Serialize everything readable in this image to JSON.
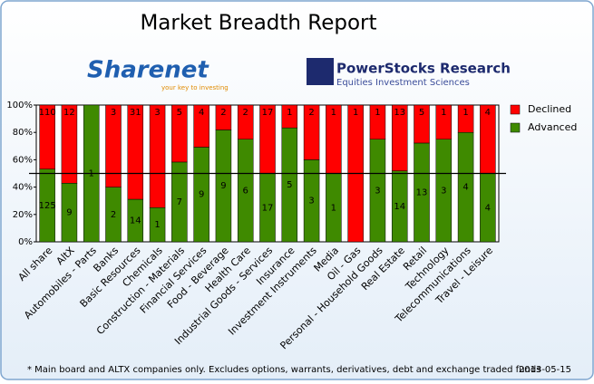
{
  "chart_data": {
    "type": "bar",
    "stacking": "percent",
    "title": "Market Breadth Report",
    "logos": {
      "left": {
        "name": "Sharenet",
        "tagline": "your key to investing"
      },
      "right": {
        "name": "PowerStocks Research",
        "tagline": "Equities Investment Sciences"
      }
    },
    "categories": [
      "All share",
      "AltX",
      "Automobiles - Parts",
      "Banks",
      "Basic Resources",
      "Chemicals",
      "Construction - Materials",
      "Financial Services",
      "Food - Beverage",
      "Health Care",
      "Industrial Goods - Services",
      "Insurance",
      "Investment Instruments",
      "Media",
      "Oil - Gas",
      "Personal - Household Goods",
      "Real Estate",
      "Retail",
      "Technology",
      "Telecommunications",
      "Travel - Leisure"
    ],
    "series": [
      {
        "name": "Advanced",
        "color": "#3f8a00",
        "values": [
          125,
          9,
          1,
          2,
          14,
          1,
          7,
          9,
          9,
          6,
          17,
          5,
          3,
          1,
          0,
          3,
          14,
          13,
          3,
          4,
          4
        ]
      },
      {
        "name": "Declined",
        "color": "#ff0000",
        "values": [
          110,
          12,
          0,
          3,
          31,
          3,
          5,
          4,
          2,
          2,
          17,
          1,
          2,
          1,
          1,
          1,
          13,
          5,
          1,
          1,
          4
        ]
      }
    ],
    "ylim": [
      0,
      100
    ],
    "yticks": [
      {
        "value": 0,
        "label": "0%"
      },
      {
        "value": 20,
        "label": "20%"
      },
      {
        "value": 40,
        "label": "40%"
      },
      {
        "value": 60,
        "label": "60%"
      },
      {
        "value": 80,
        "label": "80%"
      },
      {
        "value": 100,
        "label": "100%"
      }
    ],
    "reference_line": 50,
    "legend": "right",
    "footnote": "* Main board and ALTX companies only. Excludes options, warrants, derivatives, debt and exchange traded funds",
    "date": "2013-05-15"
  }
}
